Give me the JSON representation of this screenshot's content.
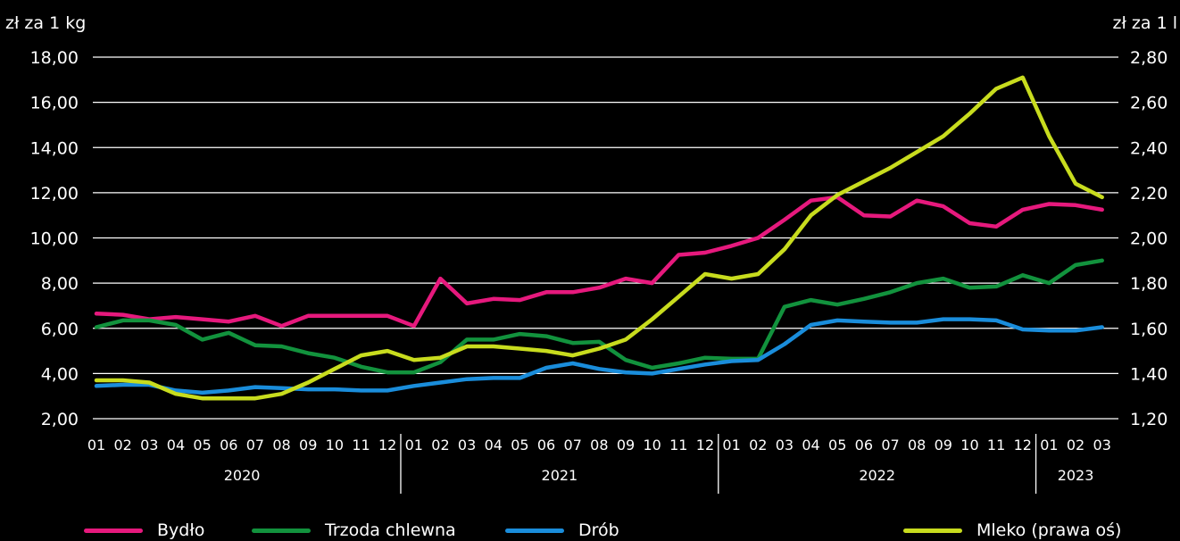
{
  "chart_data": {
    "type": "line",
    "left_axis": {
      "label": "zł za 1 kg",
      "range": [
        2,
        18
      ],
      "ticks": [
        "2,00",
        "4,00",
        "6,00",
        "8,00",
        "10,00",
        "12,00",
        "14,00",
        "16,00",
        "18,00"
      ]
    },
    "right_axis": {
      "label": "zł za 1 l",
      "range": [
        1.2,
        2.8
      ],
      "ticks": [
        "1,20",
        "1,40",
        "1,60",
        "1,80",
        "2,00",
        "2,20",
        "2,40",
        "2,60",
        "2,80"
      ]
    },
    "x": {
      "months": [
        "01",
        "02",
        "03",
        "04",
        "05",
        "06",
        "07",
        "08",
        "09",
        "10",
        "11",
        "12",
        "01",
        "02",
        "03",
        "04",
        "05",
        "06",
        "07",
        "08",
        "09",
        "10",
        "11",
        "12",
        "01",
        "02",
        "03",
        "04",
        "05",
        "06",
        "07",
        "08",
        "09",
        "10",
        "11",
        "12",
        "01",
        "02",
        "03"
      ],
      "years": [
        {
          "label": "2020",
          "count": 12
        },
        {
          "label": "2021",
          "count": 12
        },
        {
          "label": "2022",
          "count": 12
        },
        {
          "label": "2023",
          "count": 3
        }
      ]
    },
    "grid": true,
    "legend_position": "bottom",
    "series": [
      {
        "name": "Bydło",
        "axis": "left",
        "color": "#e6197d",
        "values": [
          6.65,
          6.6,
          6.4,
          6.5,
          6.4,
          6.3,
          6.55,
          6.1,
          6.55,
          6.55,
          6.55,
          6.55,
          6.1,
          8.2,
          7.1,
          7.3,
          7.25,
          7.6,
          7.6,
          7.8,
          8.2,
          8.0,
          9.25,
          9.35,
          9.65,
          10.0,
          10.8,
          11.65,
          11.8,
          11.0,
          10.95,
          11.65,
          11.4,
          10.65,
          10.5,
          11.25,
          11.5,
          11.45,
          11.25
        ]
      },
      {
        "name": "Trzoda chlewna",
        "axis": "left",
        "color": "#12923d",
        "values": [
          6.05,
          6.35,
          6.35,
          6.15,
          5.5,
          5.8,
          5.25,
          5.2,
          4.9,
          4.7,
          4.3,
          4.05,
          4.05,
          4.5,
          5.5,
          5.5,
          5.75,
          5.65,
          5.35,
          5.4,
          4.6,
          4.25,
          4.45,
          4.7,
          4.65,
          4.65,
          6.95,
          7.25,
          7.05,
          7.3,
          7.6,
          8.0,
          8.2,
          7.8,
          7.85,
          8.35,
          8.0,
          8.8,
          9.0
        ]
      },
      {
        "name": "Drób",
        "axis": "left",
        "color": "#1a8ddb",
        "values": [
          3.45,
          3.5,
          3.5,
          3.25,
          3.15,
          3.25,
          3.4,
          3.35,
          3.3,
          3.3,
          3.25,
          3.25,
          3.45,
          3.6,
          3.75,
          3.8,
          3.8,
          4.25,
          4.45,
          4.2,
          4.05,
          4.0,
          4.2,
          4.4,
          4.55,
          4.6,
          5.3,
          6.15,
          6.35,
          6.3,
          6.25,
          6.25,
          6.4,
          6.4,
          6.35,
          5.95,
          5.9,
          5.9,
          6.05
        ]
      },
      {
        "name": "Mleko (prawa oś)",
        "axis": "right",
        "color": "#c8dc1e",
        "values": [
          1.37,
          1.37,
          1.36,
          1.31,
          1.29,
          1.29,
          1.29,
          1.31,
          1.36,
          1.42,
          1.48,
          1.5,
          1.46,
          1.47,
          1.52,
          1.52,
          1.51,
          1.5,
          1.48,
          1.51,
          1.55,
          1.64,
          1.74,
          1.84,
          1.82,
          1.84,
          1.95,
          2.1,
          2.19,
          2.25,
          2.31,
          2.38,
          2.45,
          2.55,
          2.66,
          2.71,
          2.45,
          2.24,
          2.18
        ]
      }
    ]
  }
}
